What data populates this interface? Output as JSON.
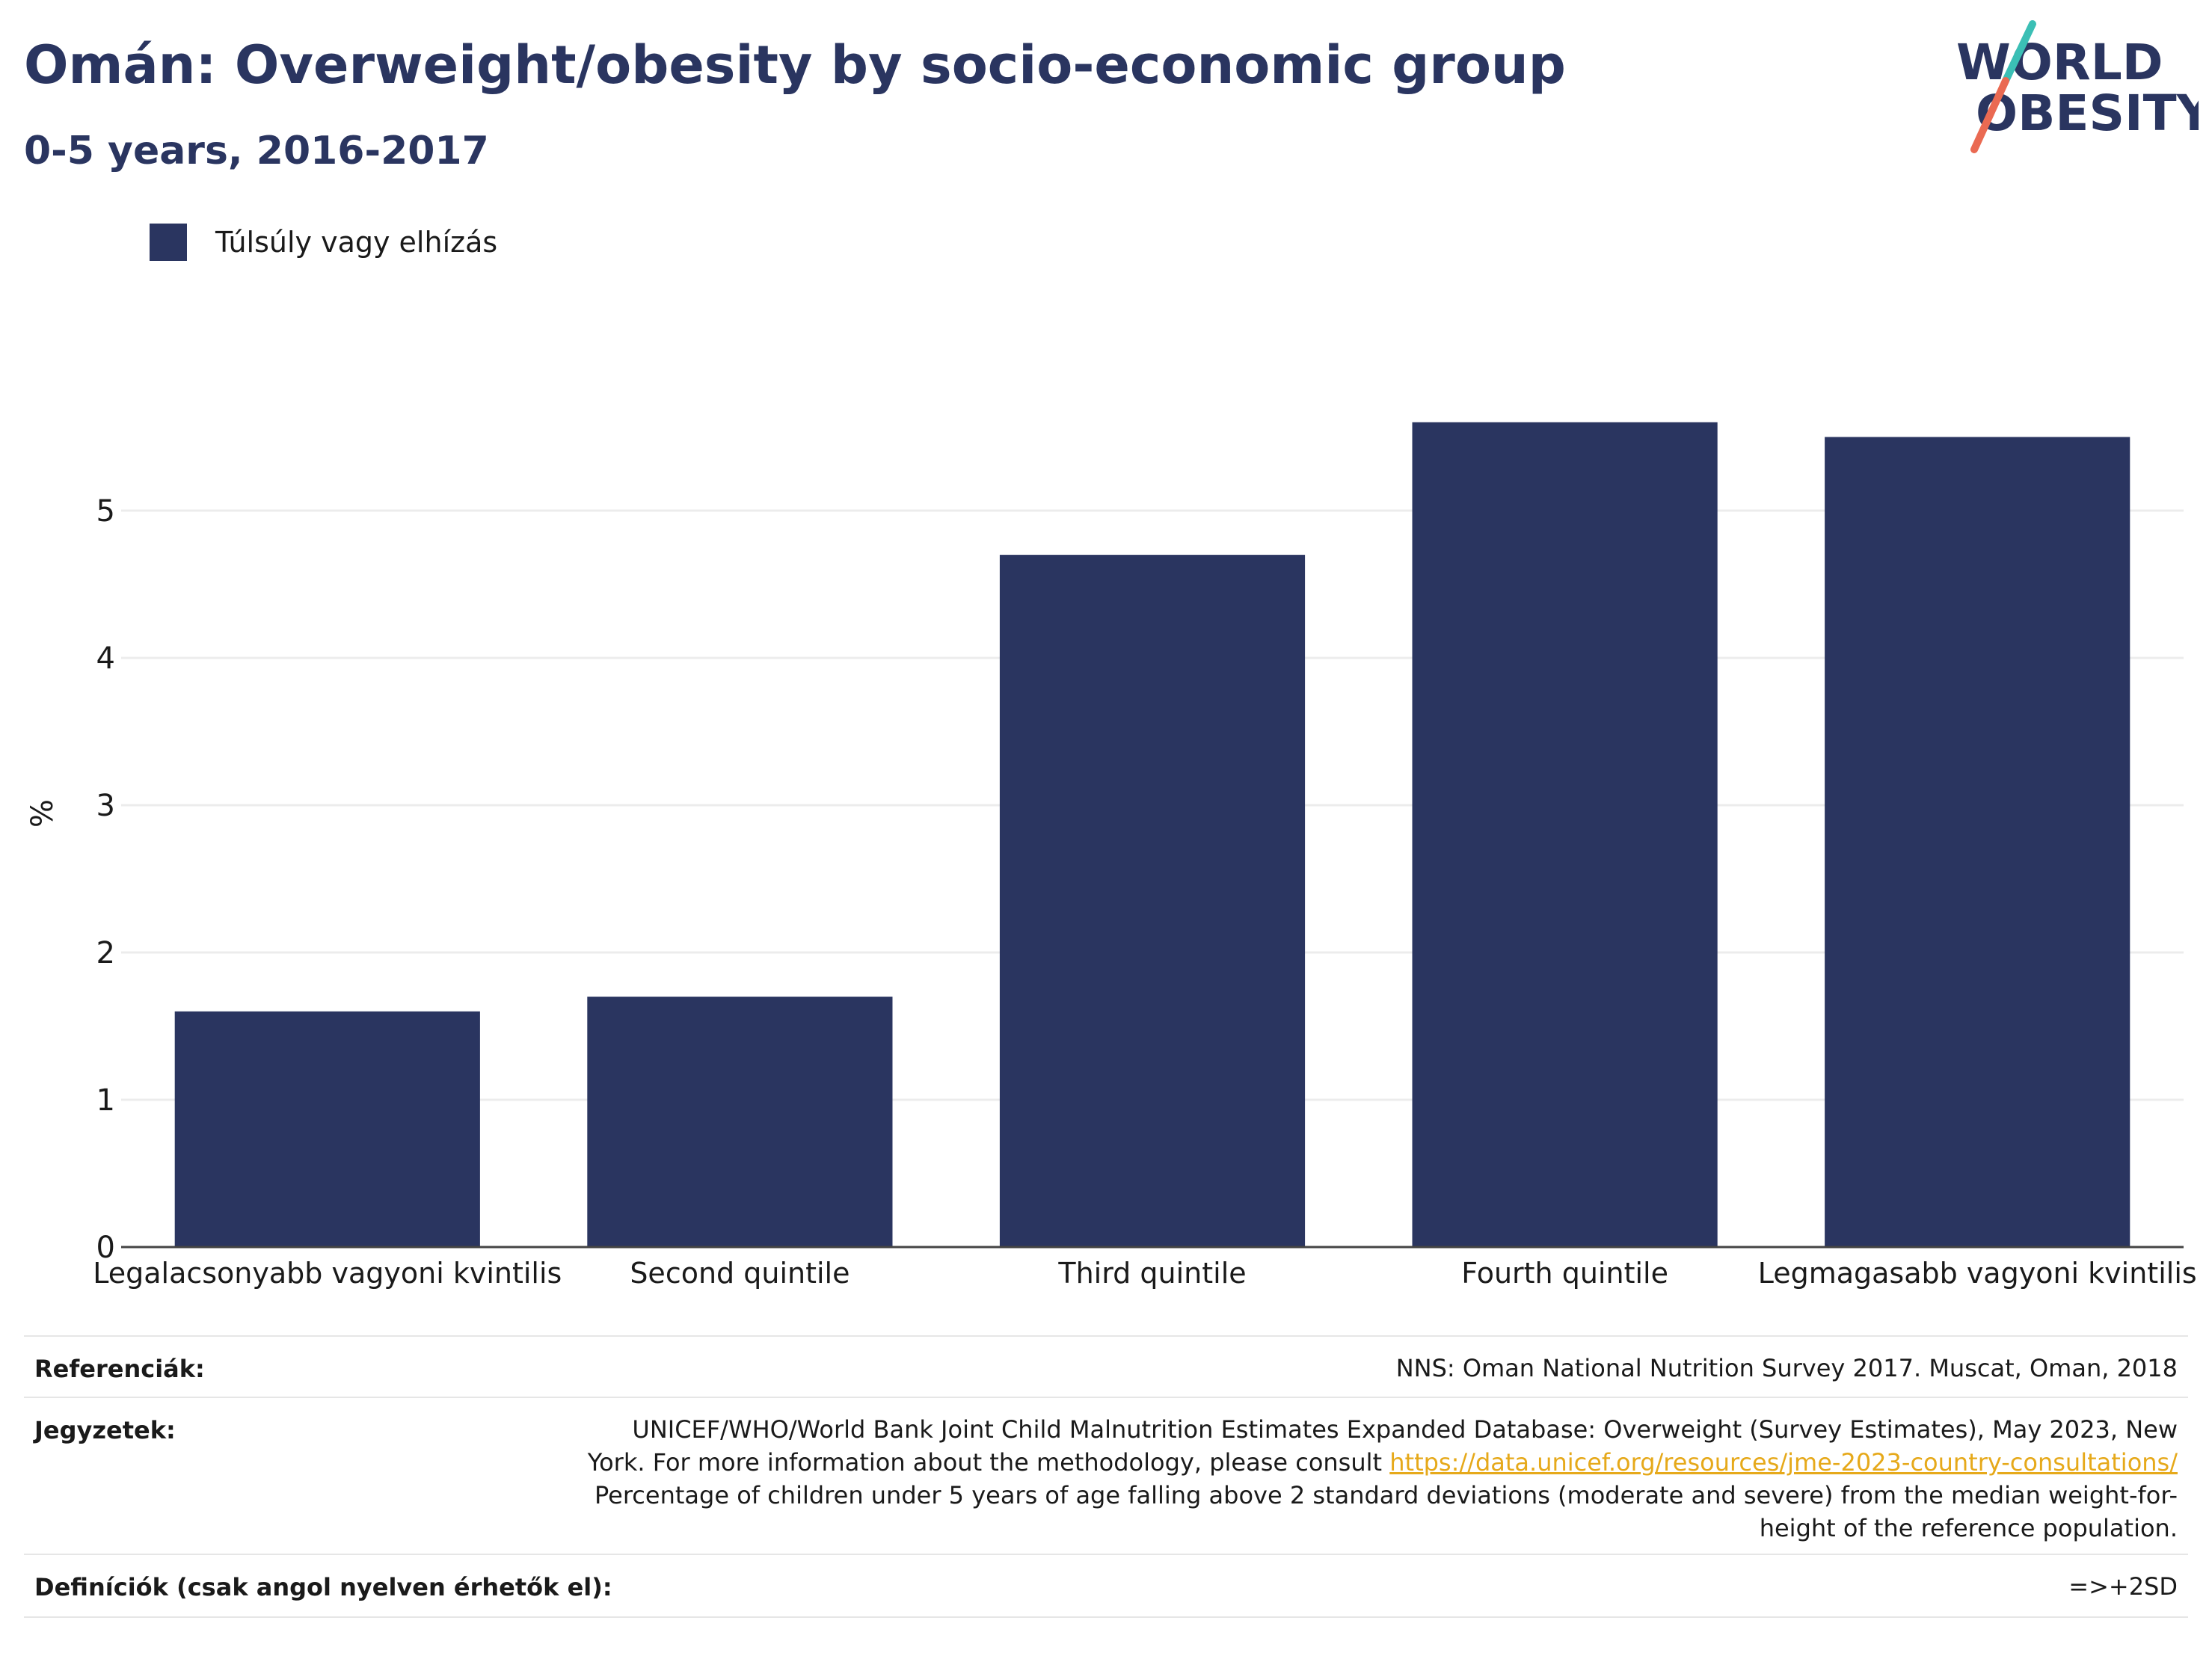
{
  "header": {
    "title": "Omán: Overweight/obesity by socio-economic group",
    "subtitle": "0-5 years, 2016-2017"
  },
  "logo": {
    "line1": "WORLD",
    "line2": "OBESITY",
    "colors": {
      "text": "#2a3560",
      "slash_top": "#3bbfb5",
      "slash_bottom": "#ea6a52"
    }
  },
  "legend": {
    "label": "Túlsúly vagy elhízás",
    "color": "#2a3560"
  },
  "chart_data": {
    "type": "bar",
    "categories": [
      "Legalacsonyabb vagyoni kvintilis",
      "Second quintile",
      "Third quintile",
      "Fourth quintile",
      "Legmagasabb vagyoni kvintilis"
    ],
    "series": [
      {
        "name": "Túlsúly vagy elhízás",
        "values": [
          1.6,
          1.7,
          4.7,
          5.6,
          5.5
        ],
        "color": "#2a3560"
      }
    ],
    "ylabel": "%",
    "xlabel": "",
    "ylim": [
      0,
      6
    ],
    "yticks": [
      0,
      1,
      2,
      3,
      4,
      5
    ],
    "grid": true,
    "legend_position": "top-left"
  },
  "footer": {
    "references": {
      "key": "Referenciák:",
      "value": "NNS: Oman National Nutrition Survey 2017. Muscat, Oman, 2018"
    },
    "notes": {
      "key": "Jegyzetek:",
      "line1": "UNICEF/WHO/World Bank Joint Child Malnutrition Estimates Expanded Database: Overweight (Survey Estimates), May 2023, New",
      "line2_prefix": "York. For more information about the methodology, please consult ",
      "link": "https://data.unicef.org/resources/jme-2023-country-consultations/",
      "line3": "Percentage of children under 5 years of age falling above 2 standard deviations (moderate and severe) from the median weight-for-",
      "line4": "height of the reference population."
    },
    "definitions": {
      "key": "Definíciók (csak angol nyelven érhetők el):",
      "value": "=>+2SD"
    }
  }
}
